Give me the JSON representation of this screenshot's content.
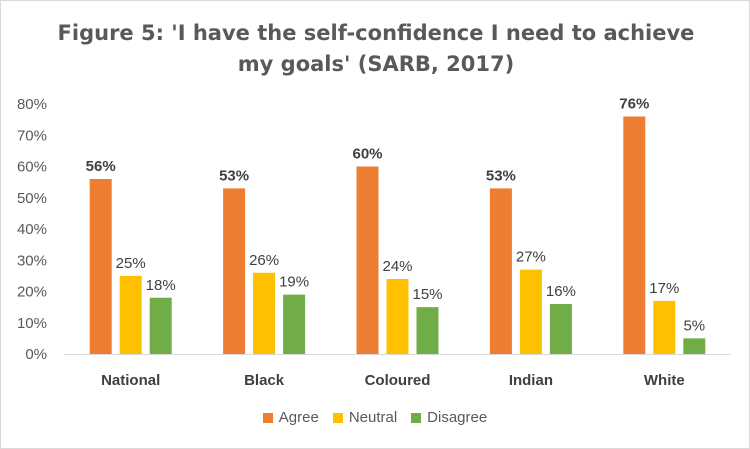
{
  "chart_data": {
    "type": "bar",
    "title": "Figure 5: 'I have the self-confidence I need to achieve my goals' (SARB, 2017)",
    "categories": [
      "National",
      "Black",
      "Coloured",
      "Indian",
      "White"
    ],
    "series": [
      {
        "name": "Agree",
        "color": "#ED7D31",
        "values": [
          56,
          53,
          60,
          53,
          76
        ],
        "labels": [
          "56%",
          "53%",
          "60%",
          "53%",
          "76%"
        ],
        "label_bold": true
      },
      {
        "name": "Neutral",
        "color": "#FFC000",
        "values": [
          25,
          26,
          24,
          27,
          17
        ],
        "labels": [
          "25%",
          "26%",
          "24%",
          "27%",
          "17%"
        ],
        "label_bold": false
      },
      {
        "name": "Disagree",
        "color": "#70AD47",
        "values": [
          18,
          19,
          15,
          16,
          5
        ],
        "labels": [
          "18%",
          "19%",
          "15%",
          "16%",
          "5%"
        ],
        "label_bold": false
      }
    ],
    "ylim": [
      0,
      80
    ],
    "yticks": [
      "0%",
      "10%",
      "20%",
      "30%",
      "40%",
      "50%",
      "60%",
      "70%",
      "80%"
    ],
    "grid": false,
    "legend": "bottom"
  }
}
